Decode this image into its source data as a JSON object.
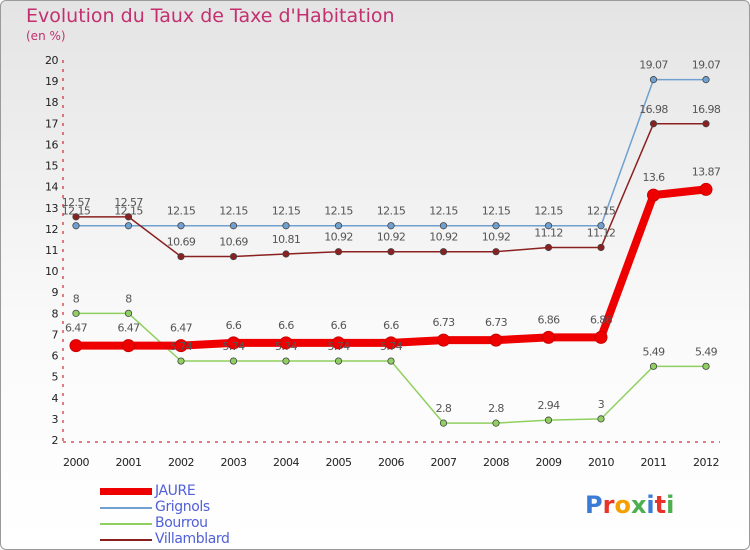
{
  "chart_data": {
    "type": "line",
    "title": "Evolution du Taux de Taxe d'Habitation",
    "subtitle": "(en %)",
    "x": [
      "2000",
      "2001",
      "2002",
      "2003",
      "2004",
      "2005",
      "2006",
      "2007",
      "2008",
      "2009",
      "2010",
      "2011",
      "2012"
    ],
    "ylim": [
      2,
      20
    ],
    "yticks": [
      "2",
      "3",
      "4",
      "5",
      "6",
      "7",
      "8",
      "9",
      "10",
      "11",
      "12",
      "13",
      "14",
      "15",
      "16",
      "17",
      "18",
      "19",
      "20"
    ],
    "grid": false,
    "legend_position": "bottom-left",
    "series": [
      {
        "name": "JAURE",
        "color": "#ee0000",
        "values": [
          6.47,
          6.47,
          6.47,
          6.6,
          6.6,
          6.6,
          6.6,
          6.73,
          6.73,
          6.86,
          6.86,
          13.6,
          13.87
        ],
        "labels": [
          "6.47",
          "6.47",
          "6.47",
          "6.6",
          "6.6",
          "6.6",
          "6.6",
          "6.73",
          "6.73",
          "6.86",
          "6.86",
          "13.6",
          "13.87"
        ]
      },
      {
        "name": "Grignols",
        "color": "#6fa0d0",
        "values": [
          12.15,
          12.15,
          12.15,
          12.15,
          12.15,
          12.15,
          12.15,
          12.15,
          12.15,
          12.15,
          12.15,
          19.07,
          19.07
        ],
        "labels": [
          "12.15",
          "12.15",
          "12.15",
          "12.15",
          "12.15",
          "12.15",
          "12.15",
          "12.15",
          "12.15",
          "12.15",
          "12.15",
          "19.07",
          "19.07"
        ]
      },
      {
        "name": "Bourrou",
        "color": "#90d060",
        "values": [
          8,
          8,
          5.74,
          5.74,
          5.74,
          5.74,
          5.74,
          2.8,
          2.8,
          2.94,
          3,
          5.49,
          5.49
        ],
        "labels": [
          "8",
          "8",
          "5.74",
          "5.74",
          "5.74",
          "5.74",
          "5.74",
          "2.8",
          "2.8",
          "2.94",
          "3",
          "5.49",
          "5.49"
        ]
      },
      {
        "name": "Villamblard",
        "color": "#8b2020",
        "values": [
          12.57,
          12.57,
          10.69,
          10.69,
          10.81,
          10.92,
          10.92,
          10.92,
          10.92,
          11.12,
          11.12,
          16.98,
          16.98
        ],
        "labels": [
          "12.57",
          "12.57",
          "10.69",
          "10.69",
          "10.81",
          "10.92",
          "10.92",
          "10.92",
          "10.92",
          "11.12",
          "11.12",
          "16.98",
          "16.98"
        ]
      }
    ]
  },
  "brand": {
    "logo_text": [
      "P",
      "r",
      "o",
      "x",
      "i",
      "t",
      "i"
    ]
  }
}
